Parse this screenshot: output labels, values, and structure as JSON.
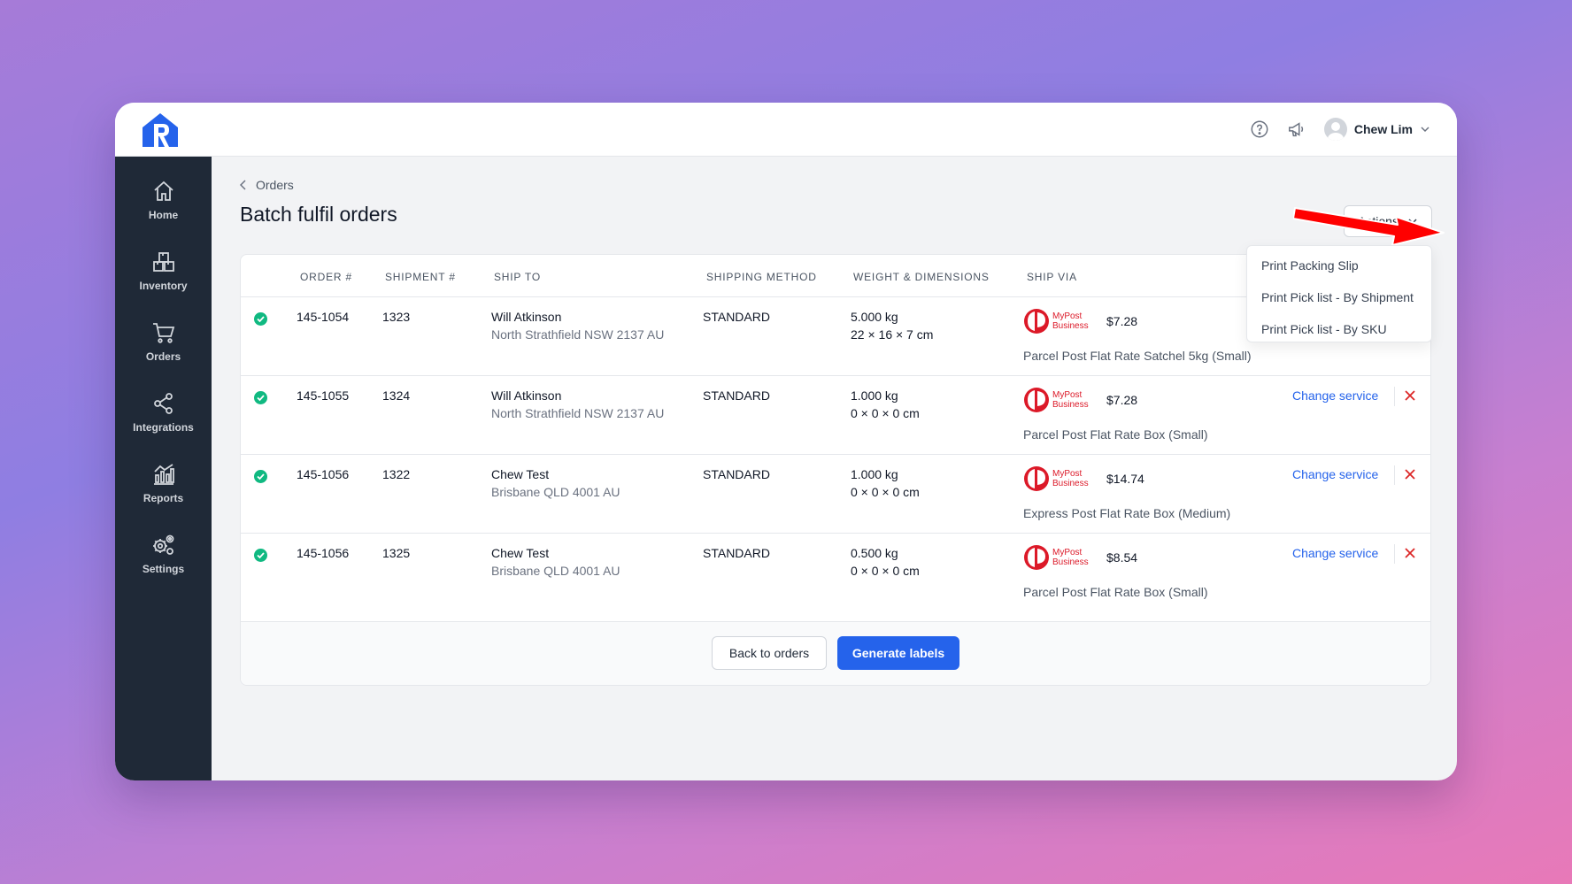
{
  "app": {
    "user_name": "Chew Lim"
  },
  "sidebar": {
    "items": [
      {
        "label": "Home",
        "icon": "home-icon"
      },
      {
        "label": "Inventory",
        "icon": "inventory-icon"
      },
      {
        "label": "Orders",
        "icon": "cart-icon"
      },
      {
        "label": "Integrations",
        "icon": "share-icon"
      },
      {
        "label": "Reports",
        "icon": "reports-icon"
      },
      {
        "label": "Settings",
        "icon": "gears-icon"
      }
    ]
  },
  "breadcrumb": {
    "label": "Orders"
  },
  "page": {
    "title": "Batch fulfil orders"
  },
  "actions": {
    "label": "Actions",
    "menu": [
      "Print Packing Slip",
      "Print Pick list - By Shipment",
      "Print Pick list - By SKU"
    ]
  },
  "table": {
    "headers": [
      "ORDER #",
      "SHIPMENT #",
      "SHIP TO",
      "SHIPPING METHOD",
      "WEIGHT & DIMENSIONS",
      "SHIP VIA"
    ],
    "carrier_brand": [
      "MyPost",
      "Business"
    ],
    "change_label": "Change service",
    "rows": [
      {
        "order": "145-1054",
        "shipment": "1323",
        "name": "Will Atkinson",
        "address": "North Strathfield NSW 2137 AU",
        "method": "STANDARD",
        "weight": "5.000 kg",
        "dims": "22 × 16 × 7 cm",
        "price": "$7.28",
        "service": "Parcel Post Flat Rate Satchel 5kg (Small)"
      },
      {
        "order": "145-1055",
        "shipment": "1324",
        "name": "Will Atkinson",
        "address": "North Strathfield NSW 2137 AU",
        "method": "STANDARD",
        "weight": "1.000 kg",
        "dims": "0 × 0 × 0 cm",
        "price": "$7.28",
        "service": "Parcel Post Flat Rate Box (Small)"
      },
      {
        "order": "145-1056",
        "shipment": "1322",
        "name": "Chew Test",
        "address": "Brisbane QLD 4001 AU",
        "method": "STANDARD",
        "weight": "1.000 kg",
        "dims": "0 × 0 × 0 cm",
        "price": "$14.74",
        "service": "Express Post Flat Rate Box (Medium)"
      },
      {
        "order": "145-1056",
        "shipment": "1325",
        "name": "Chew Test",
        "address": "Brisbane QLD 4001 AU",
        "method": "STANDARD",
        "weight": "0.500 kg",
        "dims": "0 × 0 × 0 cm",
        "price": "$8.54",
        "service": "Parcel Post Flat Rate Box (Small)"
      }
    ]
  },
  "footer": {
    "back_label": "Back to orders",
    "generate_label": "Generate labels"
  },
  "colors": {
    "primary": "#2563eb",
    "sidebar": "#1f2937",
    "success": "#10b981",
    "danger": "#dc2626",
    "annotation": "#ff0000"
  }
}
